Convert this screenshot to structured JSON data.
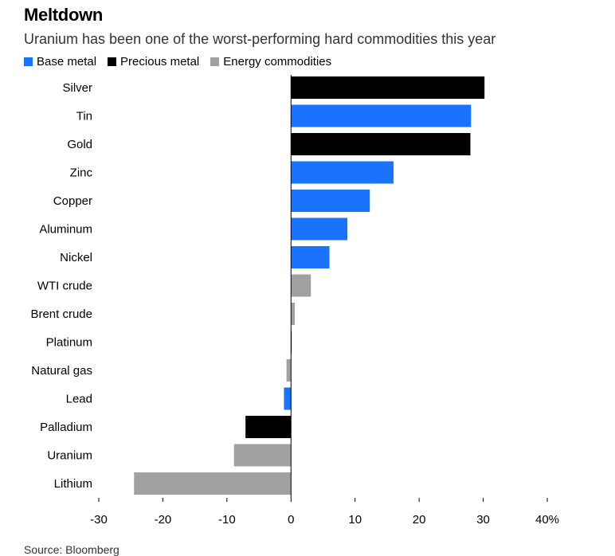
{
  "header": {
    "title": "Meltdown",
    "subtitle": "Uranium has been one of the worst-performing hard commodities this year"
  },
  "legend": [
    {
      "label": "Base metal",
      "color": "#1a73ff"
    },
    {
      "label": "Precious metal",
      "color": "#000000"
    },
    {
      "label": "Energy commodities",
      "color": "#a0a0a0"
    }
  ],
  "chart_data": {
    "type": "bar",
    "orientation": "horizontal",
    "xlim": [
      -30,
      40
    ],
    "x_ticks": [
      "-30",
      "-20",
      "-10",
      "0",
      "10",
      "20",
      "30",
      "40%"
    ],
    "categories": [
      "Silver",
      "Tin",
      "Gold",
      "Zinc",
      "Copper",
      "Aluminum",
      "Nickel",
      "WTI crude",
      "Brent crude",
      "Platinum",
      "Natural gas",
      "Lead",
      "Palladium",
      "Uranium",
      "Lithium"
    ],
    "values": [
      30.2,
      28.1,
      28.0,
      16.0,
      12.3,
      8.8,
      6.0,
      3.1,
      0.6,
      0.1,
      -0.7,
      -1.1,
      -7.1,
      -8.9,
      -24.5
    ],
    "groups": [
      "Precious metal",
      "Base metal",
      "Precious metal",
      "Base metal",
      "Base metal",
      "Base metal",
      "Base metal",
      "Energy commodities",
      "Energy commodities",
      "Precious metal",
      "Energy commodities",
      "Base metal",
      "Precious metal",
      "Energy commodities",
      "Energy commodities"
    ]
  },
  "footer": {
    "source": "Source: Bloomberg"
  }
}
